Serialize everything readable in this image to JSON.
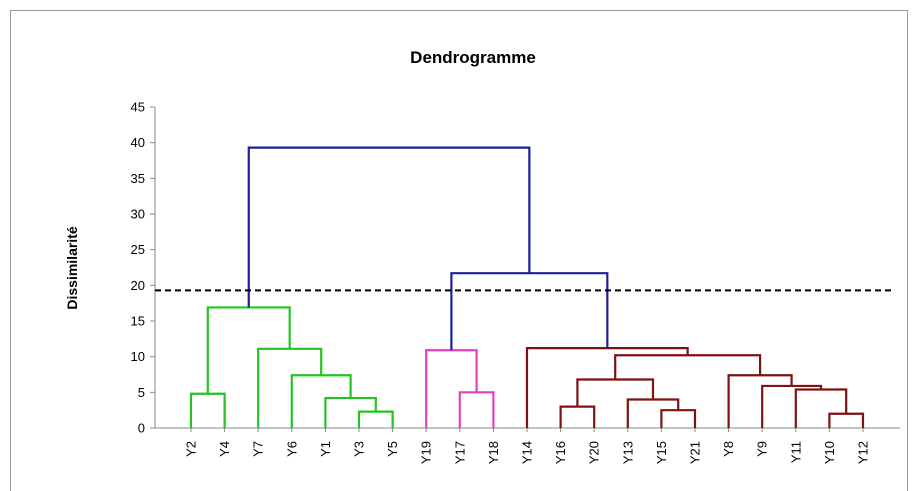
{
  "chart_data": {
    "type": "dendrogram",
    "title": "Dendrogramme",
    "ylabel": "Dissimilarité",
    "ylim": [
      0,
      45
    ],
    "yticks": [
      0,
      5,
      10,
      15,
      20,
      25,
      30,
      35,
      40,
      45
    ],
    "threshold": 19.3,
    "threshold_style": "dashed",
    "tree": {
      "height": 39.3,
      "color": "#1f1f9a",
      "children": [
        {
          "height": 16.9,
          "color": "#22c322",
          "children": [
            {
              "height": 4.8,
              "color": "#22c322",
              "children": [
                "Y2",
                "Y4"
              ]
            },
            {
              "height": 11.1,
              "color": "#22c322",
              "children": [
                "Y7",
                {
                  "height": 7.4,
                  "color": "#22c322",
                  "children": [
                    "Y6",
                    {
                      "height": 4.2,
                      "color": "#22c322",
                      "children": [
                        "Y1",
                        {
                          "height": 2.3,
                          "color": "#22c322",
                          "children": [
                            "Y3",
                            "Y5"
                          ]
                        }
                      ]
                    }
                  ]
                }
              ]
            }
          ]
        },
        {
          "height": 21.7,
          "color": "#1f1f9a",
          "children": [
            {
              "height": 10.9,
              "color": "#e040c0",
              "children": [
                "Y19",
                {
                  "height": 5.0,
                  "color": "#e040c0",
                  "children": [
                    "Y17",
                    "Y18"
                  ]
                }
              ]
            },
            {
              "height": 11.2,
              "color": "#7f1111",
              "children": [
                "Y14",
                {
                  "height": 10.2,
                  "color": "#7f1111",
                  "children": [
                    {
                      "height": 6.8,
                      "color": "#7f1111",
                      "children": [
                        {
                          "height": 3.0,
                          "color": "#7f1111",
                          "children": [
                            "Y16",
                            "Y20"
                          ]
                        },
                        {
                          "height": 4.0,
                          "color": "#7f1111",
                          "children": [
                            "Y13",
                            {
                              "height": 2.5,
                              "color": "#7f1111",
                              "children": [
                                "Y15",
                                "Y21"
                              ]
                            }
                          ]
                        }
                      ]
                    },
                    {
                      "height": 7.4,
                      "color": "#7f1111",
                      "children": [
                        "Y8",
                        {
                          "height": 5.9,
                          "color": "#7f1111",
                          "children": [
                            "Y9",
                            {
                              "height": 5.4,
                              "color": "#7f1111",
                              "children": [
                                "Y11",
                                {
                                  "height": 2.0,
                                  "color": "#7f1111",
                                  "children": [
                                    "Y10",
                                    "Y12"
                                  ]
                                }
                              ]
                            }
                          ]
                        }
                      ]
                    }
                  ]
                }
              ]
            }
          ]
        }
      ]
    }
  }
}
